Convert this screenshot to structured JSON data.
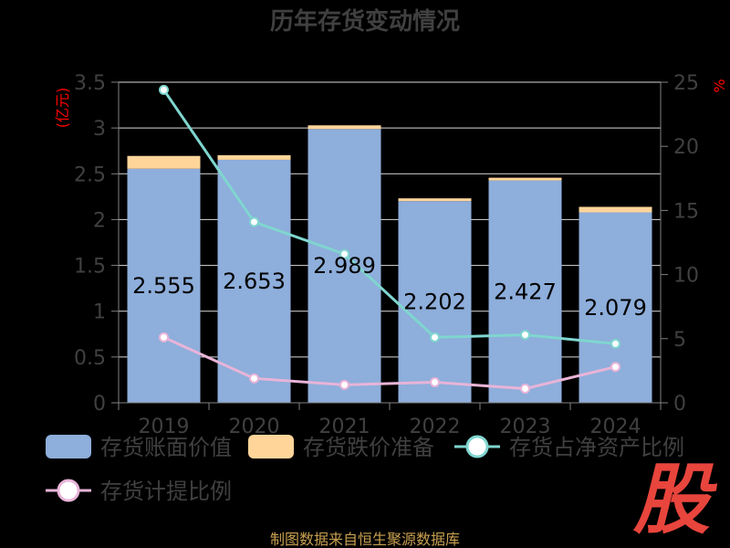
{
  "chart_data": {
    "type": "bar",
    "title": "历年存货变动情况",
    "categories": [
      "2019",
      "2020",
      "2021",
      "2022",
      "2023",
      "2024"
    ],
    "left_axis": {
      "unit": "(亿元)",
      "ylim": [
        0,
        3.5
      ],
      "ticks": [
        "0",
        "0.5",
        "1",
        "1.5",
        "2",
        "2.5",
        "3",
        "3.5"
      ]
    },
    "right_axis": {
      "unit": "%",
      "ylim": [
        0,
        25
      ],
      "ticks": [
        "0",
        "5",
        "10",
        "15",
        "20",
        "25"
      ]
    },
    "grid": true,
    "legend_position": "bottom",
    "series": [
      {
        "name": "存货账面价值",
        "kind": "bar",
        "axis": "left",
        "color": "#8eaedb",
        "values": [
          2.555,
          2.653,
          2.989,
          2.202,
          2.427,
          2.079
        ],
        "labels": [
          "2.555",
          "2.653",
          "2.989",
          "2.202",
          "2.427",
          "2.079"
        ]
      },
      {
        "name": "存货跌价准备",
        "kind": "bar-stacked",
        "axis": "left",
        "color": "#ffd59a",
        "values": [
          0.14,
          0.05,
          0.04,
          0.03,
          0.03,
          0.06
        ]
      },
      {
        "name": "存货占净资产比例",
        "kind": "line",
        "axis": "right",
        "color": "#7fd6cf",
        "values": [
          24.4,
          14.1,
          11.6,
          5.1,
          5.3,
          4.6
        ]
      },
      {
        "name": "存货计提比例",
        "kind": "line",
        "axis": "right",
        "color": "#e8b4d8",
        "values": [
          5.1,
          1.9,
          1.4,
          1.6,
          1.1,
          2.8
        ]
      }
    ]
  },
  "source_text": "制图数据来自恒生聚源数据库",
  "badge_text": "股"
}
